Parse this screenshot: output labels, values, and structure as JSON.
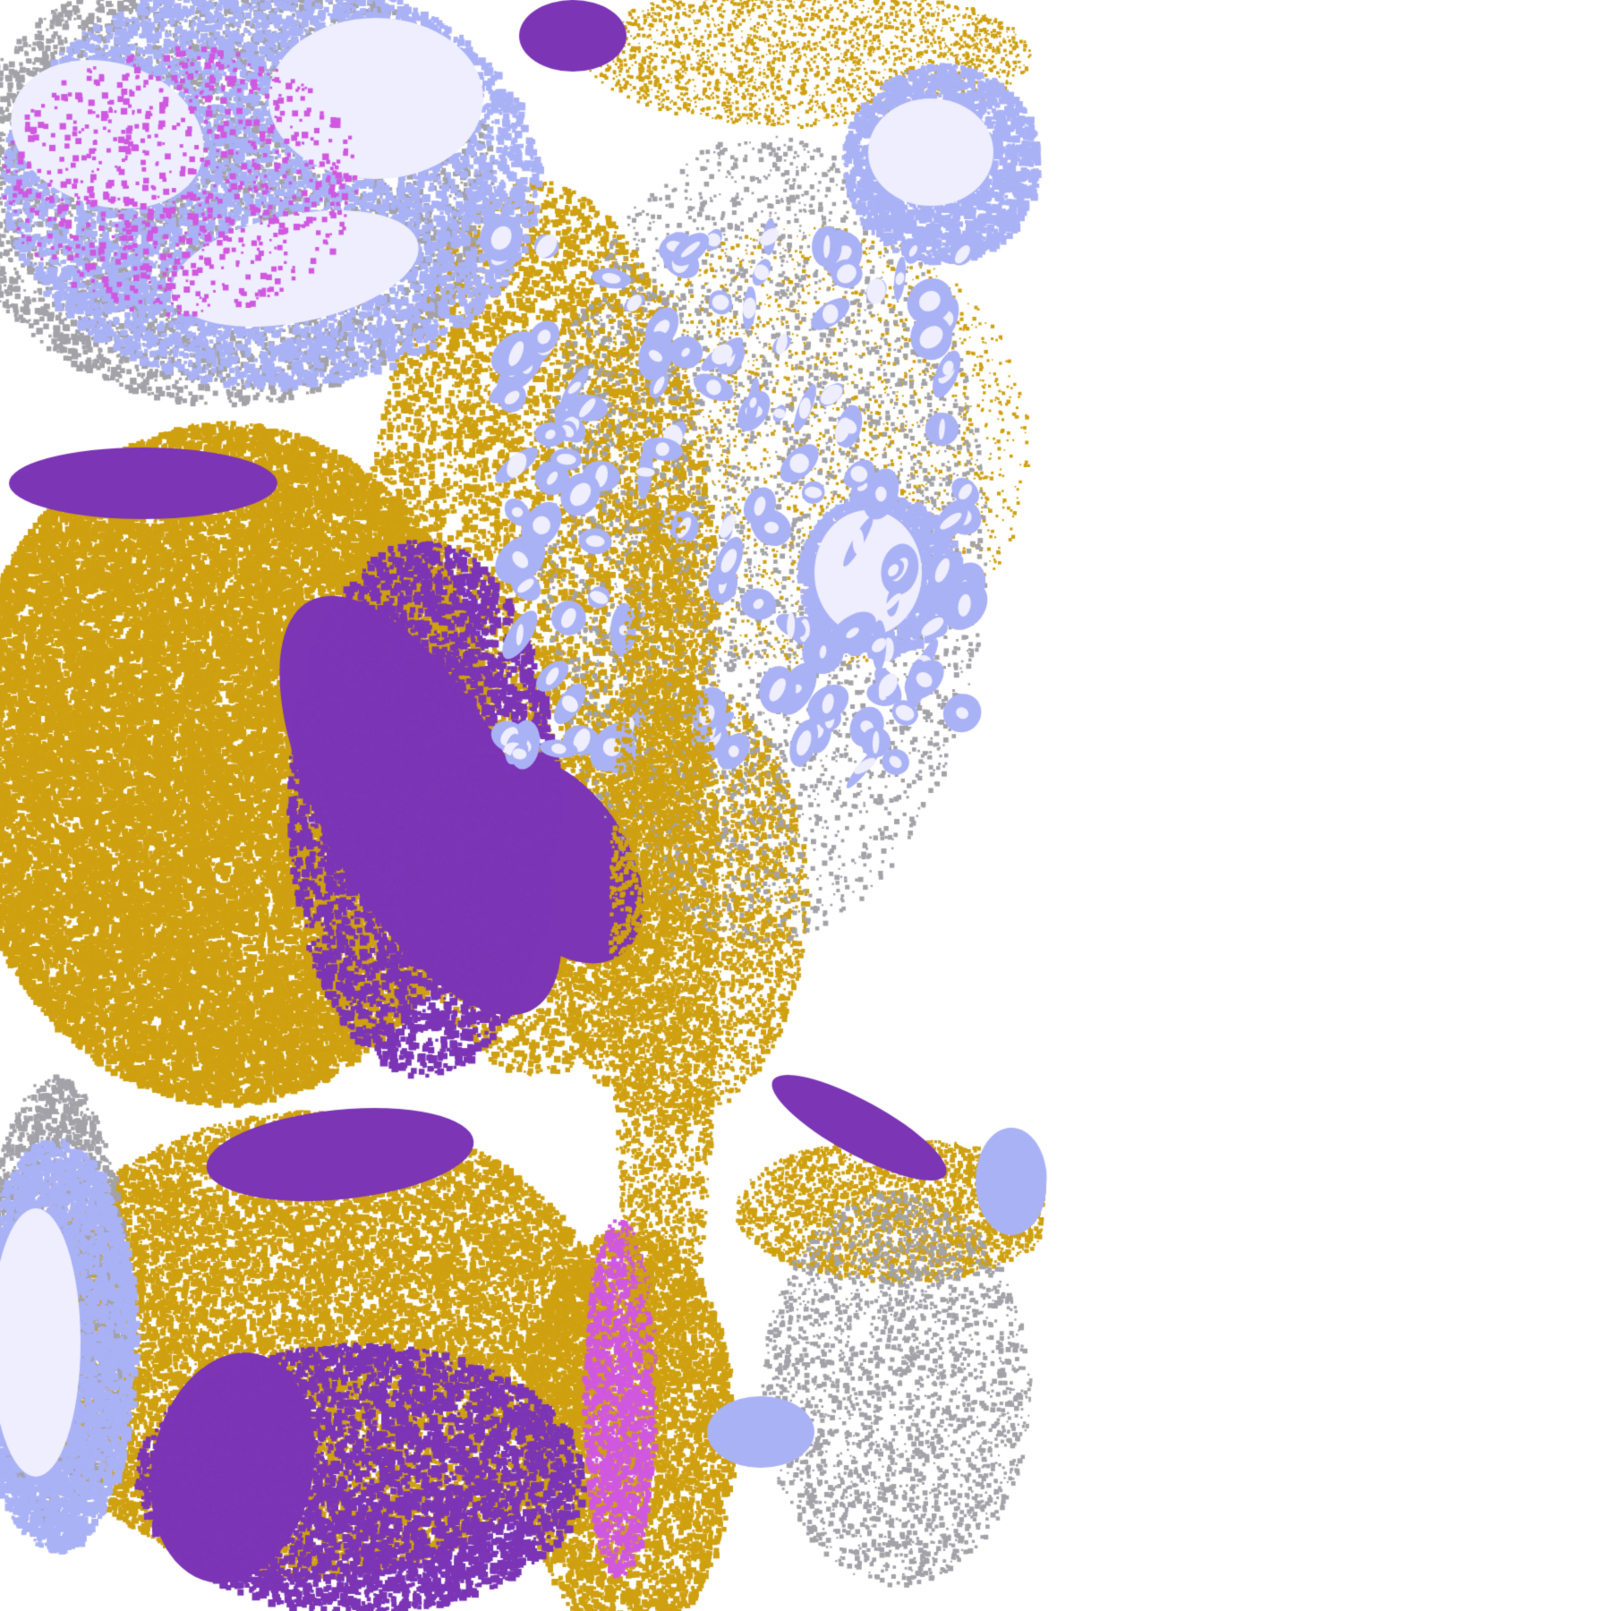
{
  "image": {
    "kind": "satellite cloud classification swath",
    "colors": {
      "background": "#ffffff",
      "clear": "#ffffff",
      "low_cloud_gold": "#cfa010",
      "stratus_purple": "#7b35b5",
      "high_cloud_lavender": "#eeeeff",
      "mid_cloud_periwinkle": "#aab2f6",
      "thin_cloud_gray": "#a2a2a8",
      "mixed_magenta": "#d058e0"
    }
  }
}
